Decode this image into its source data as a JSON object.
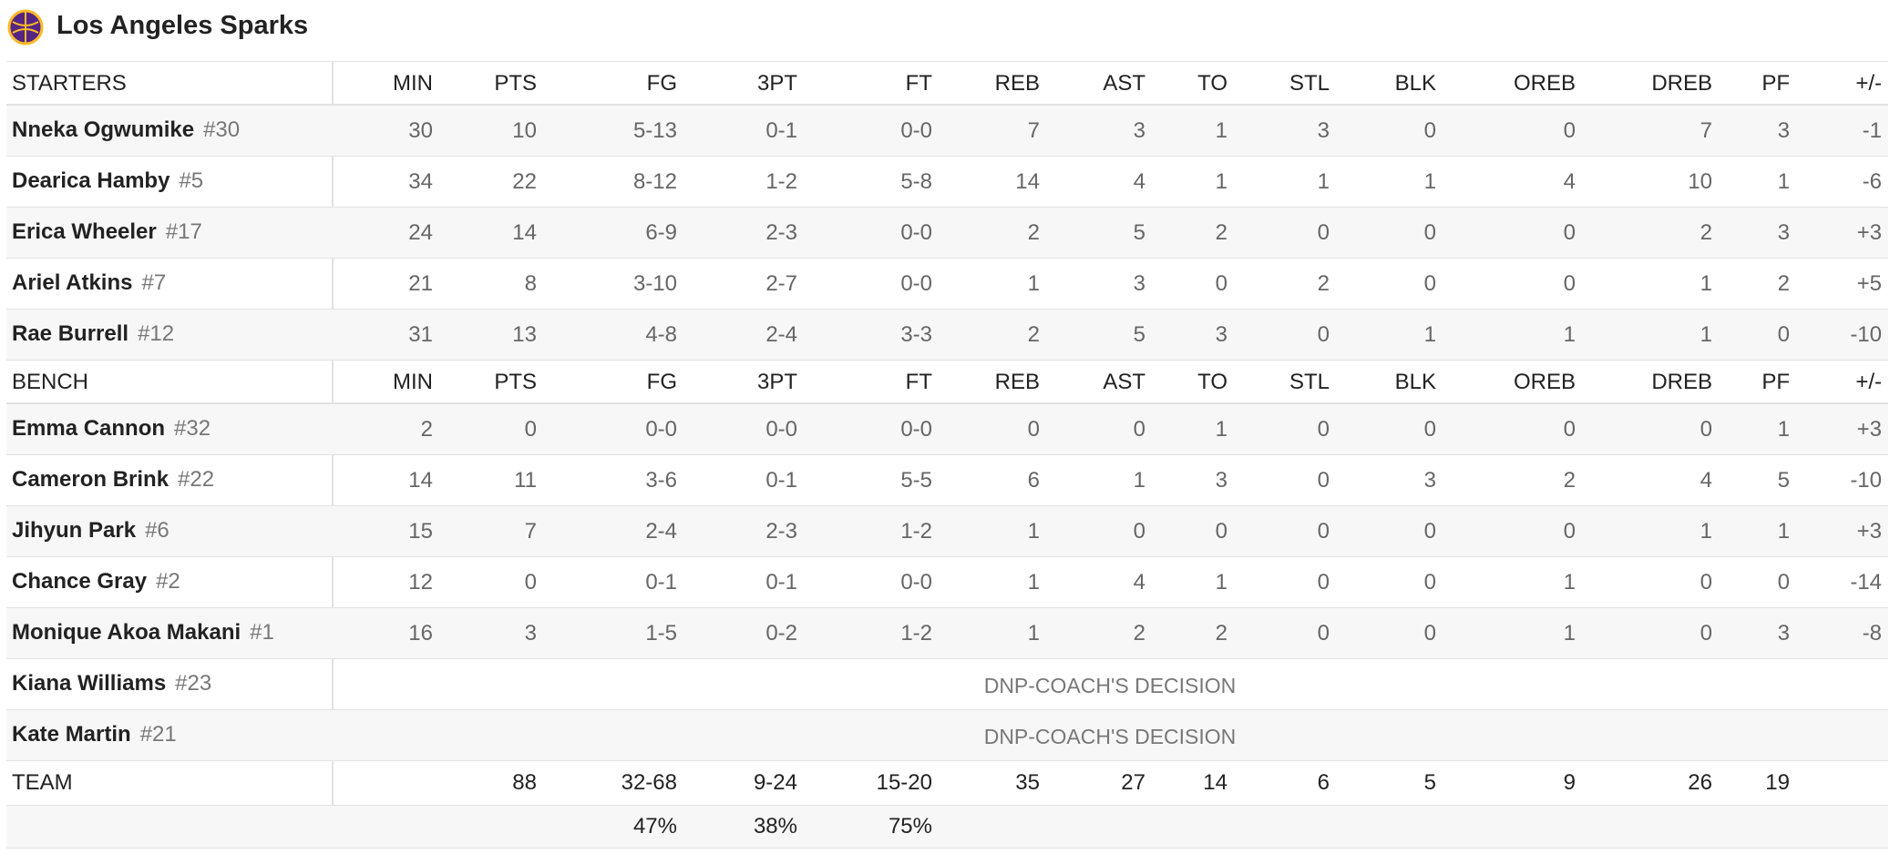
{
  "header": {
    "title": "Los Angeles Sparks"
  },
  "table": {
    "sections": [
      {
        "label": "STARTERS",
        "columns": [
          "MIN",
          "PTS",
          "FG",
          "3PT",
          "FT",
          "REB",
          "AST",
          "TO",
          "STL",
          "BLK",
          "OREB",
          "DREB",
          "PF",
          "+/-"
        ],
        "rows": [
          {
            "name": "Nneka Ogwumike",
            "number": "#30",
            "stats": [
              "30",
              "10",
              "5-13",
              "0-1",
              "0-0",
              "7",
              "3",
              "1",
              "3",
              "0",
              "0",
              "7",
              "3",
              "-1"
            ]
          },
          {
            "name": "Dearica Hamby",
            "number": "#5",
            "stats": [
              "34",
              "22",
              "8-12",
              "1-2",
              "5-8",
              "14",
              "4",
              "1",
              "1",
              "1",
              "4",
              "10",
              "1",
              "-6"
            ]
          },
          {
            "name": "Erica Wheeler",
            "number": "#17",
            "stats": [
              "24",
              "14",
              "6-9",
              "2-3",
              "0-0",
              "2",
              "5",
              "2",
              "0",
              "0",
              "0",
              "2",
              "3",
              "+3"
            ]
          },
          {
            "name": "Ariel Atkins",
            "number": "#7",
            "stats": [
              "21",
              "8",
              "3-10",
              "2-7",
              "0-0",
              "1",
              "3",
              "0",
              "2",
              "0",
              "0",
              "1",
              "2",
              "+5"
            ]
          },
          {
            "name": "Rae Burrell",
            "number": "#12",
            "stats": [
              "31",
              "13",
              "4-8",
              "2-4",
              "3-3",
              "2",
              "5",
              "3",
              "0",
              "1",
              "1",
              "1",
              "0",
              "-10"
            ]
          }
        ]
      },
      {
        "label": "BENCH",
        "columns": [
          "MIN",
          "PTS",
          "FG",
          "3PT",
          "FT",
          "REB",
          "AST",
          "TO",
          "STL",
          "BLK",
          "OREB",
          "DREB",
          "PF",
          "+/-"
        ],
        "rows": [
          {
            "name": "Emma Cannon",
            "number": "#32",
            "stats": [
              "2",
              "0",
              "0-0",
              "0-0",
              "0-0",
              "0",
              "0",
              "1",
              "0",
              "0",
              "0",
              "0",
              "1",
              "+3"
            ]
          },
          {
            "name": "Cameron Brink",
            "number": "#22",
            "stats": [
              "14",
              "11",
              "3-6",
              "0-1",
              "5-5",
              "6",
              "1",
              "3",
              "0",
              "3",
              "2",
              "4",
              "5",
              "-10"
            ]
          },
          {
            "name": "Jihyun Park",
            "number": "#6",
            "stats": [
              "15",
              "7",
              "2-4",
              "2-3",
              "1-2",
              "1",
              "0",
              "0",
              "0",
              "0",
              "0",
              "1",
              "1",
              "+3"
            ]
          },
          {
            "name": "Chance Gray",
            "number": "#2",
            "stats": [
              "12",
              "0",
              "0-1",
              "0-1",
              "0-0",
              "1",
              "4",
              "1",
              "0",
              "0",
              "1",
              "0",
              "0",
              "-14"
            ]
          },
          {
            "name": "Monique Akoa Makani",
            "number": "#1",
            "stats": [
              "16",
              "3",
              "1-5",
              "0-2",
              "1-2",
              "1",
              "2",
              "2",
              "0",
              "0",
              "1",
              "0",
              "3",
              "-8"
            ]
          },
          {
            "name": "Kiana Williams",
            "number": "#23",
            "note": "DNP-COACH'S DECISION"
          },
          {
            "name": "Kate Martin",
            "number": "#21",
            "note": "DNP-COACH'S DECISION"
          }
        ]
      }
    ],
    "team": {
      "label": "TEAM",
      "stats": [
        "88",
        "32-68",
        "9-24",
        "15-20",
        "35",
        "27",
        "14",
        "6",
        "5",
        "9",
        "26",
        "19"
      ],
      "percentages": [
        "47%",
        "38%",
        "75%"
      ]
    }
  }
}
